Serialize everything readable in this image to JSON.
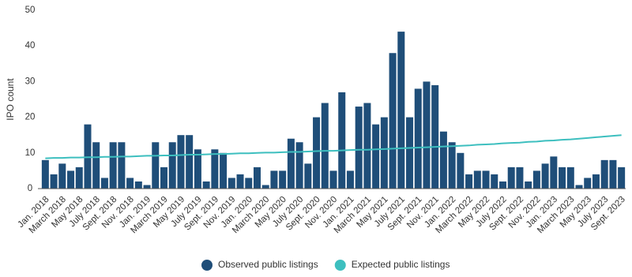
{
  "chart_data": {
    "type": "bar",
    "y_label": "IPO count",
    "categories": [
      "Jan. 2018",
      null,
      "March 2018",
      null,
      "May 2018",
      null,
      "July 2018",
      null,
      "Sept. 2018",
      null,
      "Nov. 2018",
      null,
      "Jan. 2019",
      null,
      "March 2019",
      null,
      "May 2019",
      null,
      "July 2019",
      null,
      "Sept. 2019",
      null,
      "Nov. 2019",
      null,
      "Jan. 2020",
      null,
      "March 2020",
      null,
      "May 2020",
      null,
      "July 2020",
      null,
      "Sept. 2020",
      null,
      "Nov. 2020",
      null,
      "Jan. 2021",
      null,
      "March 2021",
      null,
      "May 2021",
      null,
      "July 2021",
      null,
      "Sept. 2021",
      null,
      "Nov. 2021",
      null,
      "Jan. 2022",
      null,
      "March 2022",
      null,
      "May 2022",
      null,
      "July 2022",
      null,
      "Sept. 2022",
      null,
      "Nov. 2022",
      null,
      "Jan. 2023",
      null,
      "March 2023",
      null,
      "May 2023",
      null,
      "July 2023",
      null,
      "Sept. 2023"
    ],
    "series": [
      {
        "name": "Observed public listings",
        "color": "#1f4e79",
        "type": "bar",
        "values": [
          8,
          4,
          7,
          5,
          6,
          18,
          13,
          3,
          13,
          13,
          3,
          2,
          1,
          13,
          6,
          13,
          15,
          15,
          11,
          2,
          11,
          10,
          3,
          4,
          3,
          6,
          1,
          5,
          5,
          14,
          13,
          7,
          20,
          24,
          5,
          27,
          5,
          23,
          24,
          18,
          20,
          38,
          44,
          20,
          28,
          30,
          29,
          16,
          13,
          10,
          4,
          5,
          5,
          4,
          2,
          6,
          6,
          2,
          5,
          7,
          9,
          6,
          6,
          1,
          3,
          4,
          8,
          8,
          6
        ]
      },
      {
        "name": "Expected public listings",
        "color": "#3dbfbf",
        "type": "line",
        "values": [
          8.5,
          8.6,
          8.6,
          8.7,
          8.7,
          8.8,
          8.8,
          8.9,
          8.9,
          9.0,
          9.0,
          9.1,
          9.2,
          9.2,
          9.3,
          9.3,
          9.4,
          9.5,
          9.5,
          9.6,
          9.7,
          9.7,
          9.8,
          9.9,
          9.9,
          10.0,
          10.1,
          10.1,
          10.2,
          10.3,
          10.3,
          10.4,
          10.5,
          10.6,
          10.6,
          10.7,
          10.8,
          10.9,
          10.9,
          11.0,
          11.1,
          11.2,
          11.3,
          11.4,
          11.5,
          11.6,
          11.7,
          11.8,
          11.9,
          12.0,
          12.1,
          12.3,
          12.4,
          12.5,
          12.7,
          12.8,
          12.9,
          13.1,
          13.2,
          13.4,
          13.5,
          13.7,
          13.8,
          14.0,
          14.2,
          14.4,
          14.6,
          14.8,
          15.0
        ]
      }
    ],
    "ylim": [
      0,
      50
    ],
    "yticks": [
      0,
      10,
      20,
      30,
      40,
      50
    ],
    "grid": false,
    "legend": "bottom"
  }
}
